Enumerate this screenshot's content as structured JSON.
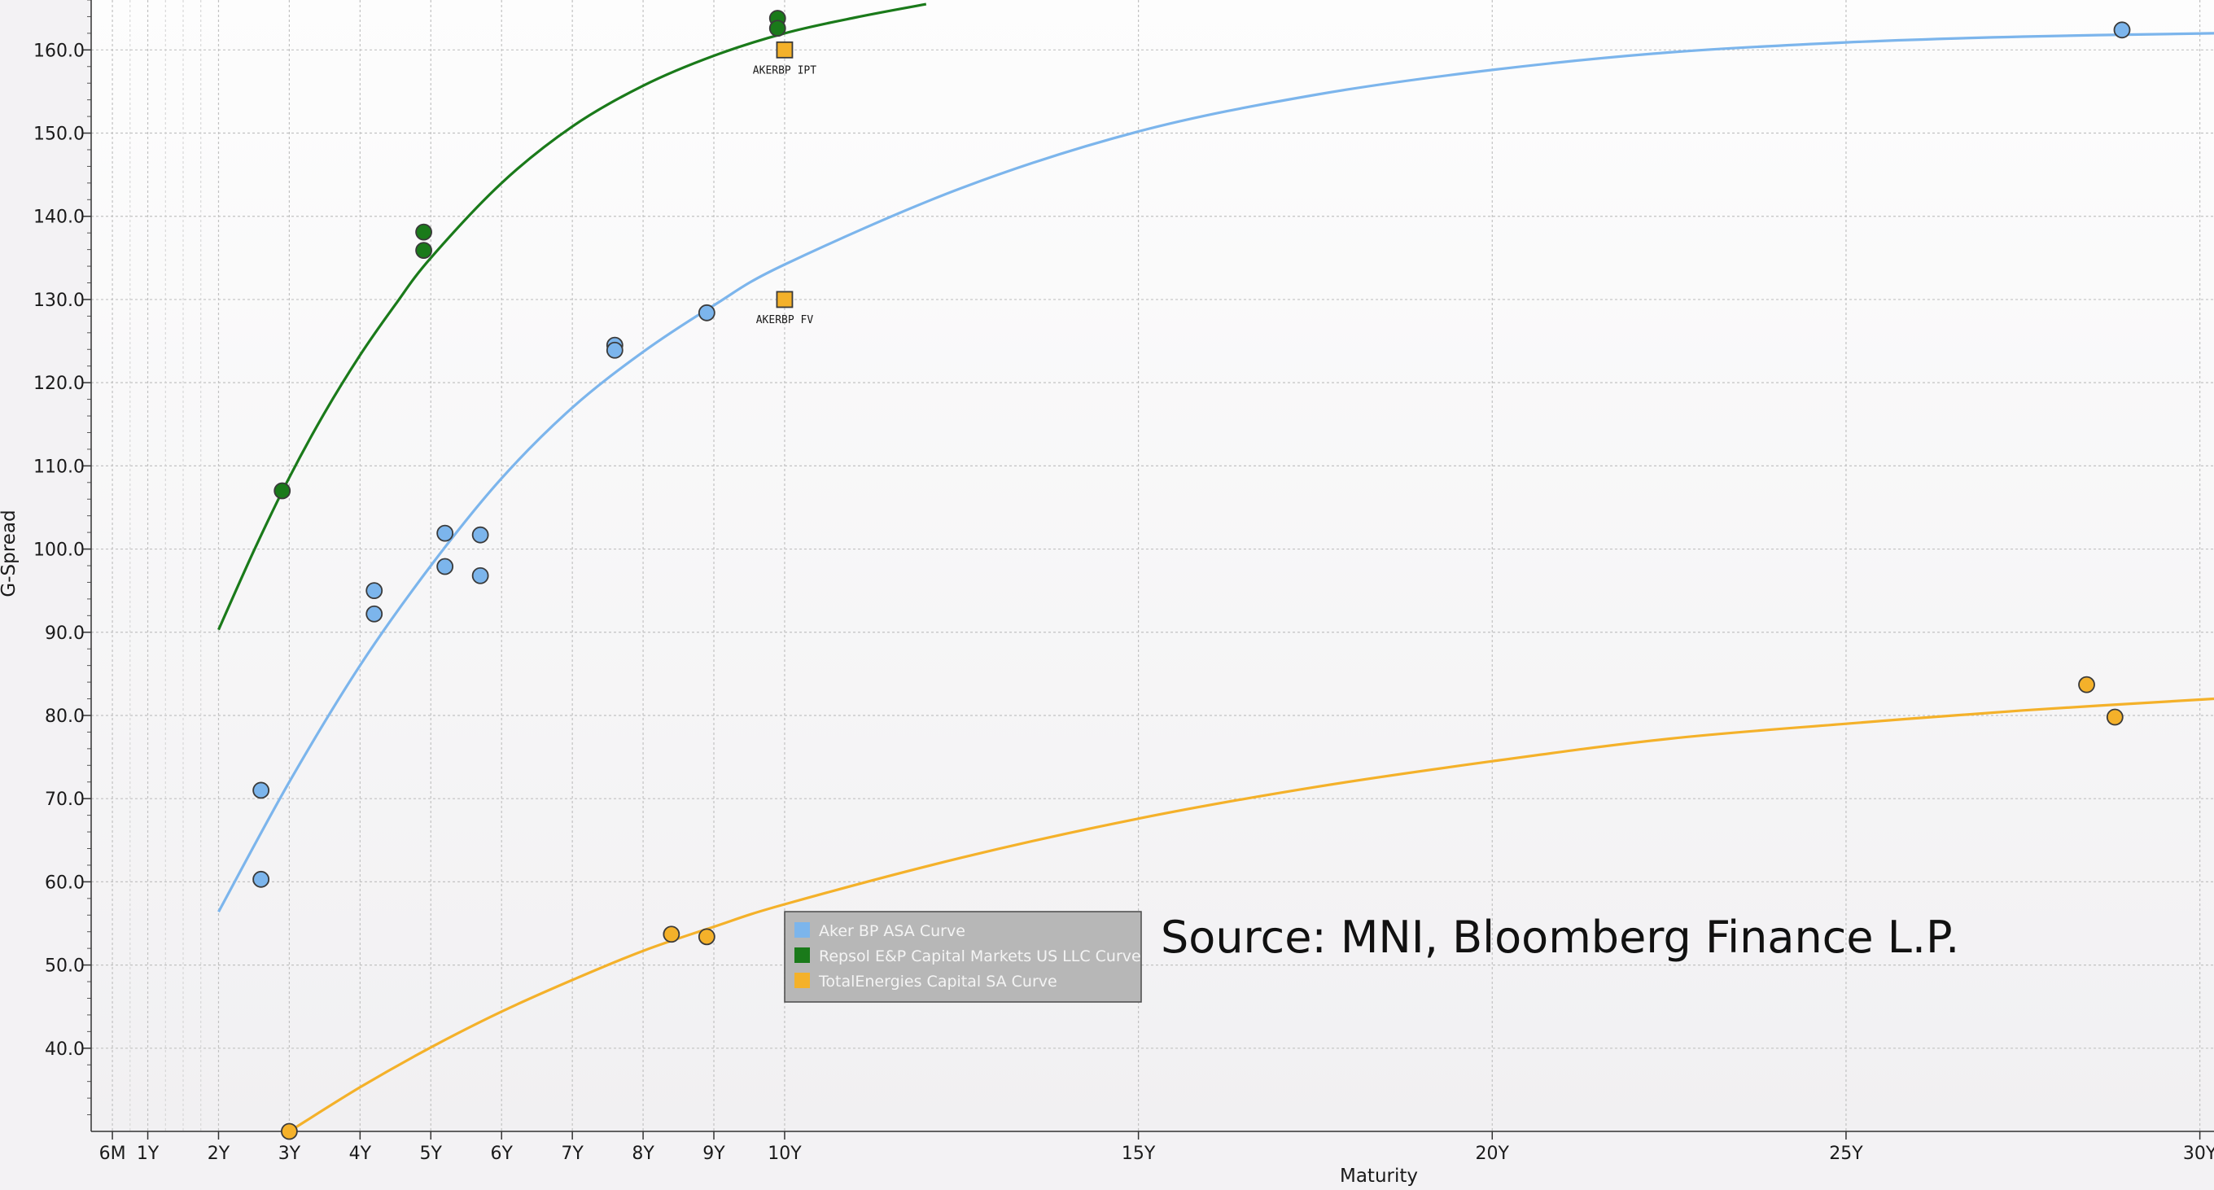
{
  "source_note": "Source: MNI, Bloomberg Finance L.P.",
  "chart_data": {
    "type": "scatter",
    "title": "",
    "xlabel": "Maturity",
    "ylabel": "G-Spread",
    "xlim": [
      0.2,
      30.2
    ],
    "ylim": [
      30,
      166
    ],
    "x_ticks": [
      {
        "value": 0.5,
        "label": "6M"
      },
      {
        "value": 1,
        "label": "1Y"
      },
      {
        "value": 2,
        "label": "2Y"
      },
      {
        "value": 3,
        "label": "3Y"
      },
      {
        "value": 4,
        "label": "4Y"
      },
      {
        "value": 5,
        "label": "5Y"
      },
      {
        "value": 6,
        "label": "6Y"
      },
      {
        "value": 7,
        "label": "7Y"
      },
      {
        "value": 8,
        "label": "8Y"
      },
      {
        "value": 9,
        "label": "9Y"
      },
      {
        "value": 10,
        "label": "10Y"
      },
      {
        "value": 15,
        "label": "15Y"
      },
      {
        "value": 20,
        "label": "20Y"
      },
      {
        "value": 25,
        "label": "25Y"
      },
      {
        "value": 30,
        "label": "30Y"
      }
    ],
    "y_ticks": [
      {
        "value": 40,
        "label": "40.0"
      },
      {
        "value": 50,
        "label": "50.0"
      },
      {
        "value": 60,
        "label": "60.0"
      },
      {
        "value": 70,
        "label": "70.0"
      },
      {
        "value": 80,
        "label": "80.0"
      },
      {
        "value": 90,
        "label": "90.0"
      },
      {
        "value": 100,
        "label": "100.0"
      },
      {
        "value": 110,
        "label": "110.0"
      },
      {
        "value": 120,
        "label": "120.0"
      },
      {
        "value": 130,
        "label": "130.0"
      },
      {
        "value": 140,
        "label": "140.0"
      },
      {
        "value": 150,
        "label": "150.0"
      },
      {
        "value": 160,
        "label": "160.0"
      }
    ],
    "grid": true,
    "legend_position": "bottom-center",
    "series": [
      {
        "name": "Aker BP ASA Curve",
        "color": "#7cb5ec",
        "points": [
          {
            "x": 2.6,
            "y": 71.0
          },
          {
            "x": 2.6,
            "y": 60.3
          },
          {
            "x": 4.2,
            "y": 95.0
          },
          {
            "x": 4.2,
            "y": 92.2
          },
          {
            "x": 5.2,
            "y": 101.9
          },
          {
            "x": 5.2,
            "y": 97.9
          },
          {
            "x": 5.7,
            "y": 101.7
          },
          {
            "x": 5.7,
            "y": 96.8
          },
          {
            "x": 7.6,
            "y": 124.5
          },
          {
            "x": 7.6,
            "y": 123.9
          },
          {
            "x": 8.9,
            "y": 128.4
          },
          {
            "x": 28.9,
            "y": 162.4
          }
        ],
        "curve": [
          {
            "x": 2.0,
            "y": 56.4
          },
          {
            "x": 3.0,
            "y": 72.0
          },
          {
            "x": 4.0,
            "y": 86.0
          },
          {
            "x": 5.0,
            "y": 98.0
          },
          {
            "x": 6.0,
            "y": 108.5
          },
          {
            "x": 7.0,
            "y": 117.0
          },
          {
            "x": 8.0,
            "y": 123.7
          },
          {
            "x": 9.0,
            "y": 129.3
          },
          {
            "x": 10.0,
            "y": 134.2
          },
          {
            "x": 12.5,
            "y": 143.4
          },
          {
            "x": 15.0,
            "y": 150.2
          },
          {
            "x": 17.5,
            "y": 154.6
          },
          {
            "x": 20.0,
            "y": 157.6
          },
          {
            "x": 22.5,
            "y": 159.7
          },
          {
            "x": 25.0,
            "y": 160.9
          },
          {
            "x": 27.5,
            "y": 161.6
          },
          {
            "x": 30.2,
            "y": 162.0
          }
        ]
      },
      {
        "name": "Repsol E&P Capital Markets US LLC Curve",
        "color": "#1a7a1a",
        "points": [
          {
            "x": 2.9,
            "y": 107.0
          },
          {
            "x": 4.9,
            "y": 138.1
          },
          {
            "x": 4.9,
            "y": 135.9
          },
          {
            "x": 9.9,
            "y": 163.8
          },
          {
            "x": 9.9,
            "y": 162.6
          }
        ],
        "curve": [
          {
            "x": 2.0,
            "y": 90.3
          },
          {
            "x": 2.5,
            "y": 99.8
          },
          {
            "x": 3.0,
            "y": 108.6
          },
          {
            "x": 3.5,
            "y": 116.4
          },
          {
            "x": 4.0,
            "y": 123.3
          },
          {
            "x": 4.5,
            "y": 129.4
          },
          {
            "x": 5.0,
            "y": 135.0
          },
          {
            "x": 6.0,
            "y": 144.0
          },
          {
            "x": 7.0,
            "y": 150.8
          },
          {
            "x": 8.0,
            "y": 155.7
          },
          {
            "x": 9.0,
            "y": 159.3
          },
          {
            "x": 10.0,
            "y": 162.0
          },
          {
            "x": 11.0,
            "y": 163.9
          },
          {
            "x": 12.0,
            "y": 165.5
          }
        ]
      },
      {
        "name": "TotalEnergies Capital SA Curve",
        "color": "#f4b12a",
        "points": [
          {
            "x": 3.0,
            "y": 30.0
          },
          {
            "x": 8.4,
            "y": 53.7
          },
          {
            "x": 8.9,
            "y": 53.4
          },
          {
            "x": 28.4,
            "y": 83.7
          },
          {
            "x": 28.8,
            "y": 79.8
          }
        ],
        "curve": [
          {
            "x": 3.0,
            "y": 30.0
          },
          {
            "x": 4.0,
            "y": 35.3
          },
          {
            "x": 5.0,
            "y": 40.1
          },
          {
            "x": 6.0,
            "y": 44.4
          },
          {
            "x": 7.0,
            "y": 48.2
          },
          {
            "x": 8.0,
            "y": 51.7
          },
          {
            "x": 9.0,
            "y": 54.6
          },
          {
            "x": 10.0,
            "y": 57.3
          },
          {
            "x": 12.5,
            "y": 62.9
          },
          {
            "x": 15.0,
            "y": 67.6
          },
          {
            "x": 17.5,
            "y": 71.4
          },
          {
            "x": 20.0,
            "y": 74.5
          },
          {
            "x": 22.5,
            "y": 77.2
          },
          {
            "x": 25.0,
            "y": 79.0
          },
          {
            "x": 27.5,
            "y": 80.6
          },
          {
            "x": 30.2,
            "y": 82.0
          }
        ]
      }
    ],
    "annotations": [
      {
        "label": "AKERBP IPT",
        "x": 10.0,
        "y": 160.0,
        "color": "#f4b12a"
      },
      {
        "label": "AKERBP FV",
        "x": 10.0,
        "y": 130.0,
        "color": "#f4b12a"
      }
    ]
  }
}
